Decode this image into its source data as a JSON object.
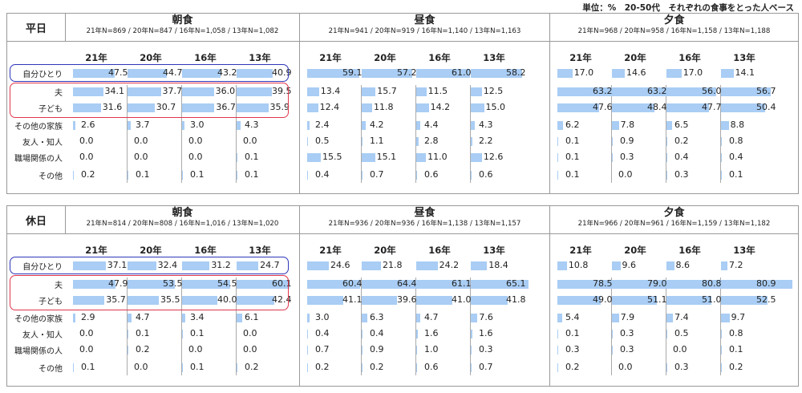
{
  "unit_note": "単位：%　20-50代　それぞれの食事をとった人ベース",
  "colors": {
    "bar": "#a9cdf4",
    "solo_highlight": "#2e36b8",
    "family_highlight": "#e0364c"
  },
  "chart_data": {
    "type": "bar",
    "years": [
      "21年",
      "20年",
      "16年",
      "13年"
    ],
    "categories": [
      "自分ひとり",
      "夫",
      "子ども",
      "その他の家族",
      "友人・知人",
      "職場関係の人",
      "その他"
    ],
    "tables": [
      {
        "day_label": "平日",
        "meals": [
          {
            "name": "朝食",
            "n_label": "21年N=869 / 20年N=847 / 16年N=1,058 / 13年N=1,082",
            "values": [
              [
                47.5,
                44.7,
                43.2,
                40.9
              ],
              [
                34.1,
                37.7,
                36.0,
                39.5
              ],
              [
                31.6,
                30.7,
                36.7,
                35.9
              ],
              [
                2.6,
                3.7,
                3.0,
                4.3
              ],
              [
                0.0,
                0.0,
                0.0,
                0.0
              ],
              [
                0.0,
                0.0,
                0.0,
                0.1
              ],
              [
                0.2,
                0.1,
                0.1,
                0.1
              ]
            ]
          },
          {
            "name": "昼食",
            "n_label": "21年N=941 / 20年N=919 / 16年N=1,140 / 13年N=1,163",
            "values": [
              [
                59.1,
                57.2,
                61.0,
                58.2
              ],
              [
                13.4,
                15.7,
                11.5,
                12.5
              ],
              [
                12.4,
                11.8,
                14.2,
                15.0
              ],
              [
                2.4,
                4.2,
                4.4,
                4.3
              ],
              [
                0.5,
                1.1,
                2.8,
                2.2
              ],
              [
                15.5,
                15.1,
                11.0,
                12.6
              ],
              [
                0.4,
                0.7,
                0.6,
                0.6
              ]
            ]
          },
          {
            "name": "夕食",
            "n_label": "21年N=968 / 20年N=958 / 16年N=1,158 / 13年N=1,188",
            "values": [
              [
                17.0,
                14.6,
                17.0,
                14.1
              ],
              [
                63.2,
                63.2,
                56.0,
                56.7
              ],
              [
                47.6,
                48.4,
                47.7,
                50.4
              ],
              [
                6.2,
                7.8,
                6.5,
                8.8
              ],
              [
                0.1,
                0.9,
                0.2,
                0.8
              ],
              [
                0.1,
                0.3,
                0.4,
                0.4
              ],
              [
                0.1,
                0.0,
                0.3,
                0.1
              ]
            ]
          }
        ]
      },
      {
        "day_label": "休日",
        "meals": [
          {
            "name": "朝食",
            "n_label": "21年N=814 / 20年N=808 / 16年N=1,016 / 13年N=1,020",
            "values": [
              [
                37.1,
                32.4,
                31.2,
                24.7
              ],
              [
                47.9,
                53.5,
                54.5,
                60.1
              ],
              [
                35.7,
                35.5,
                40.0,
                42.4
              ],
              [
                2.9,
                4.7,
                3.4,
                6.1
              ],
              [
                0.0,
                0.1,
                0.1,
                0.0
              ],
              [
                0.0,
                0.2,
                0.0,
                0.0
              ],
              [
                0.1,
                0.0,
                0.1,
                0.2
              ]
            ]
          },
          {
            "name": "昼食",
            "n_label": "21年N=936 / 20年N=936 / 16年N=1,138 / 13年N=1,157",
            "values": [
              [
                24.6,
                21.8,
                24.2,
                18.4
              ],
              [
                60.4,
                64.4,
                61.1,
                65.1
              ],
              [
                41.1,
                39.6,
                41.0,
                41.8
              ],
              [
                3.0,
                6.3,
                4.7,
                7.6
              ],
              [
                0.4,
                0.4,
                1.6,
                1.6
              ],
              [
                0.7,
                0.9,
                1.0,
                0.3
              ],
              [
                0.2,
                0.2,
                0.6,
                0.7
              ]
            ]
          },
          {
            "name": "夕食",
            "n_label": "21年N=966 / 20年N=961 / 16年N=1,159 / 13年N=1,182",
            "values": [
              [
                10.8,
                9.6,
                8.6,
                7.2
              ],
              [
                78.5,
                79.0,
                80.8,
                80.9
              ],
              [
                49.0,
                51.1,
                51.0,
                52.5
              ],
              [
                5.4,
                7.9,
                7.4,
                9.7
              ],
              [
                0.1,
                0.3,
                0.5,
                0.8
              ],
              [
                0.3,
                0.3,
                0.0,
                0.1
              ],
              [
                0.2,
                0.0,
                0.3,
                0.2
              ]
            ]
          }
        ]
      }
    ]
  }
}
